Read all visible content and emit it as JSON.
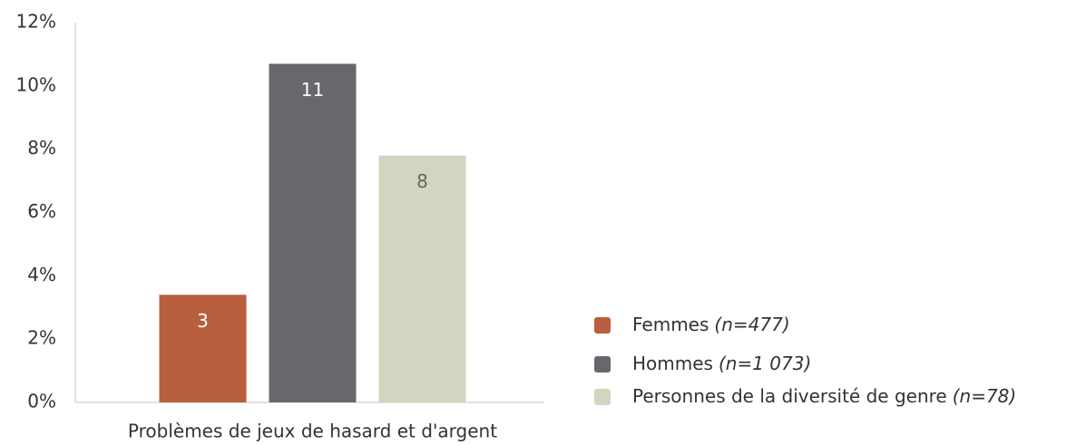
{
  "chart_data": {
    "type": "bar",
    "categories": [
      "Problèmes de jeux de hasard et d'argent"
    ],
    "series": [
      {
        "name": "Femmes",
        "sample": "(n=477)",
        "color": "#b95e3e",
        "values": [
          3.4
        ],
        "value_labels": [
          "3"
        ]
      },
      {
        "name": "Hommes",
        "sample": "(n=1 073)",
        "color": "#67676d",
        "values": [
          10.7
        ],
        "value_labels": [
          "11"
        ]
      },
      {
        "name": "Personnes de la diversité de genre",
        "sample": "(n=78)",
        "color": "#d4d5c0",
        "values": [
          7.8
        ],
        "value_labels": [
          "8"
        ]
      }
    ],
    "ylim": [
      0,
      12
    ],
    "yticks": [
      {
        "value": 0,
        "label": "0%"
      },
      {
        "value": 2,
        "label": "2%"
      },
      {
        "value": 4,
        "label": "4%"
      },
      {
        "value": 6,
        "label": "6%"
      },
      {
        "value": 8,
        "label": "8%"
      },
      {
        "value": 10,
        "label": "10%"
      },
      {
        "value": 12,
        "label": "12%"
      }
    ],
    "legend": "right"
  }
}
